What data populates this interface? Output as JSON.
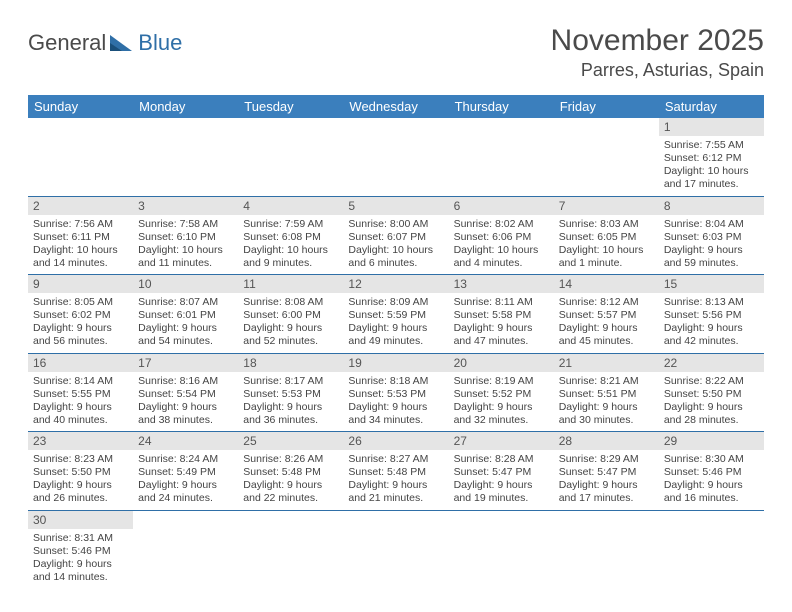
{
  "logo": {
    "text1": "General",
    "text2": "Blue"
  },
  "title": "November 2025",
  "location": "Parres, Asturias, Spain",
  "colors": {
    "header_bg": "#3b7fbd",
    "header_text": "#ffffff",
    "daynum_bg": "#e5e5e5",
    "row_border": "#2f6fa7",
    "text": "#444444",
    "logo_gray": "#4a4a4a",
    "logo_blue": "#2f6fa7"
  },
  "typography": {
    "title_fontsize": 30,
    "location_fontsize": 18,
    "dayhead_fontsize": 13,
    "cell_fontsize": 10.5
  },
  "day_headers": [
    "Sunday",
    "Monday",
    "Tuesday",
    "Wednesday",
    "Thursday",
    "Friday",
    "Saturday"
  ],
  "weeks": [
    [
      null,
      null,
      null,
      null,
      null,
      null,
      {
        "n": "1",
        "sunrise": "Sunrise: 7:55 AM",
        "sunset": "Sunset: 6:12 PM",
        "daylight": "Daylight: 10 hours and 17 minutes."
      }
    ],
    [
      {
        "n": "2",
        "sunrise": "Sunrise: 7:56 AM",
        "sunset": "Sunset: 6:11 PM",
        "daylight": "Daylight: 10 hours and 14 minutes."
      },
      {
        "n": "3",
        "sunrise": "Sunrise: 7:58 AM",
        "sunset": "Sunset: 6:10 PM",
        "daylight": "Daylight: 10 hours and 11 minutes."
      },
      {
        "n": "4",
        "sunrise": "Sunrise: 7:59 AM",
        "sunset": "Sunset: 6:08 PM",
        "daylight": "Daylight: 10 hours and 9 minutes."
      },
      {
        "n": "5",
        "sunrise": "Sunrise: 8:00 AM",
        "sunset": "Sunset: 6:07 PM",
        "daylight": "Daylight: 10 hours and 6 minutes."
      },
      {
        "n": "6",
        "sunrise": "Sunrise: 8:02 AM",
        "sunset": "Sunset: 6:06 PM",
        "daylight": "Daylight: 10 hours and 4 minutes."
      },
      {
        "n": "7",
        "sunrise": "Sunrise: 8:03 AM",
        "sunset": "Sunset: 6:05 PM",
        "daylight": "Daylight: 10 hours and 1 minute."
      },
      {
        "n": "8",
        "sunrise": "Sunrise: 8:04 AM",
        "sunset": "Sunset: 6:03 PM",
        "daylight": "Daylight: 9 hours and 59 minutes."
      }
    ],
    [
      {
        "n": "9",
        "sunrise": "Sunrise: 8:05 AM",
        "sunset": "Sunset: 6:02 PM",
        "daylight": "Daylight: 9 hours and 56 minutes."
      },
      {
        "n": "10",
        "sunrise": "Sunrise: 8:07 AM",
        "sunset": "Sunset: 6:01 PM",
        "daylight": "Daylight: 9 hours and 54 minutes."
      },
      {
        "n": "11",
        "sunrise": "Sunrise: 8:08 AM",
        "sunset": "Sunset: 6:00 PM",
        "daylight": "Daylight: 9 hours and 52 minutes."
      },
      {
        "n": "12",
        "sunrise": "Sunrise: 8:09 AM",
        "sunset": "Sunset: 5:59 PM",
        "daylight": "Daylight: 9 hours and 49 minutes."
      },
      {
        "n": "13",
        "sunrise": "Sunrise: 8:11 AM",
        "sunset": "Sunset: 5:58 PM",
        "daylight": "Daylight: 9 hours and 47 minutes."
      },
      {
        "n": "14",
        "sunrise": "Sunrise: 8:12 AM",
        "sunset": "Sunset: 5:57 PM",
        "daylight": "Daylight: 9 hours and 45 minutes."
      },
      {
        "n": "15",
        "sunrise": "Sunrise: 8:13 AM",
        "sunset": "Sunset: 5:56 PM",
        "daylight": "Daylight: 9 hours and 42 minutes."
      }
    ],
    [
      {
        "n": "16",
        "sunrise": "Sunrise: 8:14 AM",
        "sunset": "Sunset: 5:55 PM",
        "daylight": "Daylight: 9 hours and 40 minutes."
      },
      {
        "n": "17",
        "sunrise": "Sunrise: 8:16 AM",
        "sunset": "Sunset: 5:54 PM",
        "daylight": "Daylight: 9 hours and 38 minutes."
      },
      {
        "n": "18",
        "sunrise": "Sunrise: 8:17 AM",
        "sunset": "Sunset: 5:53 PM",
        "daylight": "Daylight: 9 hours and 36 minutes."
      },
      {
        "n": "19",
        "sunrise": "Sunrise: 8:18 AM",
        "sunset": "Sunset: 5:53 PM",
        "daylight": "Daylight: 9 hours and 34 minutes."
      },
      {
        "n": "20",
        "sunrise": "Sunrise: 8:19 AM",
        "sunset": "Sunset: 5:52 PM",
        "daylight": "Daylight: 9 hours and 32 minutes."
      },
      {
        "n": "21",
        "sunrise": "Sunrise: 8:21 AM",
        "sunset": "Sunset: 5:51 PM",
        "daylight": "Daylight: 9 hours and 30 minutes."
      },
      {
        "n": "22",
        "sunrise": "Sunrise: 8:22 AM",
        "sunset": "Sunset: 5:50 PM",
        "daylight": "Daylight: 9 hours and 28 minutes."
      }
    ],
    [
      {
        "n": "23",
        "sunrise": "Sunrise: 8:23 AM",
        "sunset": "Sunset: 5:50 PM",
        "daylight": "Daylight: 9 hours and 26 minutes."
      },
      {
        "n": "24",
        "sunrise": "Sunrise: 8:24 AM",
        "sunset": "Sunset: 5:49 PM",
        "daylight": "Daylight: 9 hours and 24 minutes."
      },
      {
        "n": "25",
        "sunrise": "Sunrise: 8:26 AM",
        "sunset": "Sunset: 5:48 PM",
        "daylight": "Daylight: 9 hours and 22 minutes."
      },
      {
        "n": "26",
        "sunrise": "Sunrise: 8:27 AM",
        "sunset": "Sunset: 5:48 PM",
        "daylight": "Daylight: 9 hours and 21 minutes."
      },
      {
        "n": "27",
        "sunrise": "Sunrise: 8:28 AM",
        "sunset": "Sunset: 5:47 PM",
        "daylight": "Daylight: 9 hours and 19 minutes."
      },
      {
        "n": "28",
        "sunrise": "Sunrise: 8:29 AM",
        "sunset": "Sunset: 5:47 PM",
        "daylight": "Daylight: 9 hours and 17 minutes."
      },
      {
        "n": "29",
        "sunrise": "Sunrise: 8:30 AM",
        "sunset": "Sunset: 5:46 PM",
        "daylight": "Daylight: 9 hours and 16 minutes."
      }
    ],
    [
      {
        "n": "30",
        "sunrise": "Sunrise: 8:31 AM",
        "sunset": "Sunset: 5:46 PM",
        "daylight": "Daylight: 9 hours and 14 minutes."
      },
      null,
      null,
      null,
      null,
      null,
      null
    ]
  ]
}
